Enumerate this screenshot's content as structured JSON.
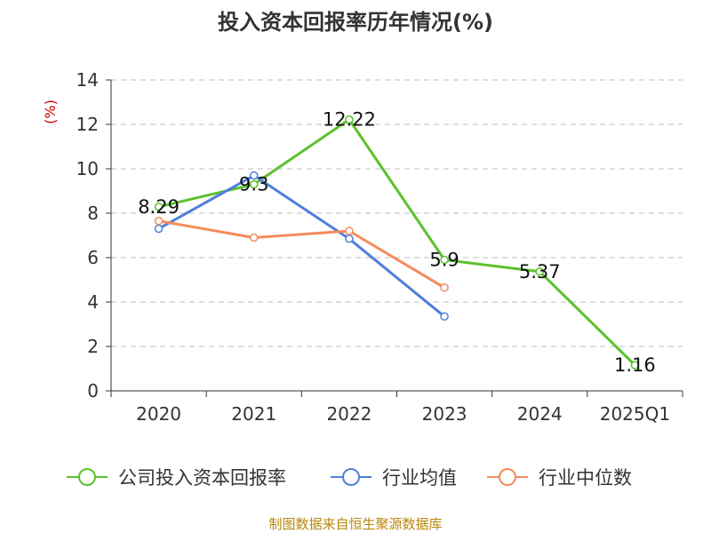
{
  "chart_data": {
    "type": "line",
    "title": "投入资本回报率历年情况(%)",
    "yunit": "(%)",
    "categories": [
      "2020",
      "2021",
      "2022",
      "2023",
      "2024",
      "2025Q1"
    ],
    "ylim": [
      0,
      14
    ],
    "yticks": [
      "0",
      "2",
      "4",
      "6",
      "8",
      "10",
      "12",
      "14"
    ],
    "grid": true,
    "legend_position": "bottom",
    "series": [
      {
        "name": "公司投入资本回报率",
        "color": "#5cc12b",
        "values": [
          8.29,
          9.3,
          12.22,
          5.9,
          5.37,
          1.16
        ],
        "labels": [
          "8.29",
          "9.3",
          "12.22",
          "5.9",
          "5.37",
          "1.16"
        ]
      },
      {
        "name": "行业均值",
        "color": "#4f7fdc",
        "values": [
          7.3,
          9.7,
          6.85,
          3.35,
          null,
          null
        ]
      },
      {
        "name": "行业中位数",
        "color": "#f58b5a",
        "values": [
          7.65,
          6.9,
          7.2,
          4.65,
          null,
          null
        ]
      }
    ]
  },
  "source": "制图数据来自恒生聚源数据库"
}
